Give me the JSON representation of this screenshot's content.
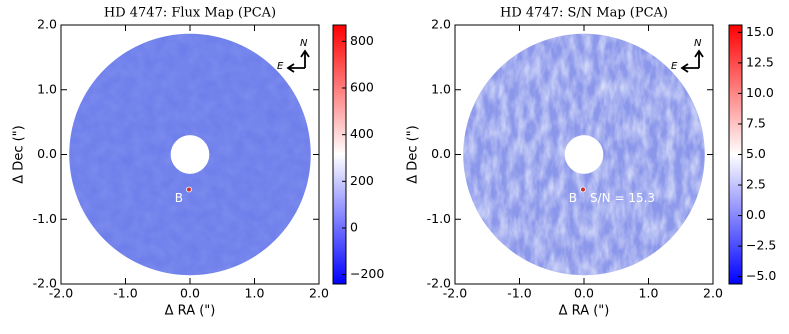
{
  "chart_data": [
    {
      "type": "image",
      "title": "HD 4747: Flux Map (PCA)",
      "xlabel": "Δ RA (\")",
      "ylabel": "Δ Dec (\")",
      "xlim": [
        -2,
        2
      ],
      "ylim": [
        -2,
        2
      ],
      "xticks": [
        {
          "value": -2,
          "label": "-2.0"
        },
        {
          "value": -1,
          "label": "-1.0"
        },
        {
          "value": 0,
          "label": "0.0"
        },
        {
          "value": 1,
          "label": "1.0"
        },
        {
          "value": 2,
          "label": "2.0"
        }
      ],
      "yticks": [
        {
          "value": -2,
          "label": "-2.0"
        },
        {
          "value": -1,
          "label": "-1.0"
        },
        {
          "value": 0,
          "label": "0.0"
        },
        {
          "value": 1,
          "label": "1.0"
        },
        {
          "value": 2,
          "label": "2.0"
        }
      ],
      "colorbar": {
        "colormap": "bwr",
        "clim": [
          -240,
          870
        ],
        "ticks": [
          {
            "value": -200,
            "label": "−200"
          },
          0,
          200,
          400,
          600,
          800
        ]
      },
      "compass": [
        "N",
        "E"
      ],
      "annotations": [
        "B"
      ]
    },
    {
      "type": "image",
      "title": "HD 4747: S/N Map (PCA)",
      "xlabel": "Δ RA (\")",
      "ylabel": "Δ Dec (\")",
      "xlim": [
        -2,
        2
      ],
      "ylim": [
        -2,
        2
      ],
      "xticks": [
        {
          "value": -2,
          "label": "-2.0"
        },
        {
          "value": -1,
          "label": "-1.0"
        },
        {
          "value": 0,
          "label": "0.0"
        },
        {
          "value": 1,
          "label": "1.0"
        },
        {
          "value": 2,
          "label": "2.0"
        }
      ],
      "yticks": [
        {
          "value": -2,
          "label": "-2.0"
        },
        {
          "value": -1,
          "label": "-1.0"
        },
        {
          "value": 0,
          "label": "0.0"
        },
        {
          "value": 1,
          "label": "1.0"
        },
        {
          "value": 2,
          "label": "2.0"
        }
      ],
      "colorbar": {
        "colormap": "bwr",
        "clim": [
          -5.6,
          15.6
        ],
        "ticks": [
          {
            "value": -5,
            "label": "−5.0"
          },
          {
            "value": -2.5,
            "label": "−2.5"
          },
          {
            "value": 0,
            "label": "0.0"
          },
          {
            "value": 2.5,
            "label": "2.5"
          },
          {
            "value": 5,
            "label": "5.0"
          },
          {
            "value": 7.5,
            "label": "7.5"
          },
          {
            "value": 10,
            "label": "10.0"
          },
          {
            "value": 12.5,
            "label": "12.5"
          },
          {
            "value": 15,
            "label": "15.0"
          }
        ]
      },
      "compass": [
        "N",
        "E"
      ],
      "annotations": [
        "B",
        "S/N = 15.3"
      ]
    }
  ]
}
